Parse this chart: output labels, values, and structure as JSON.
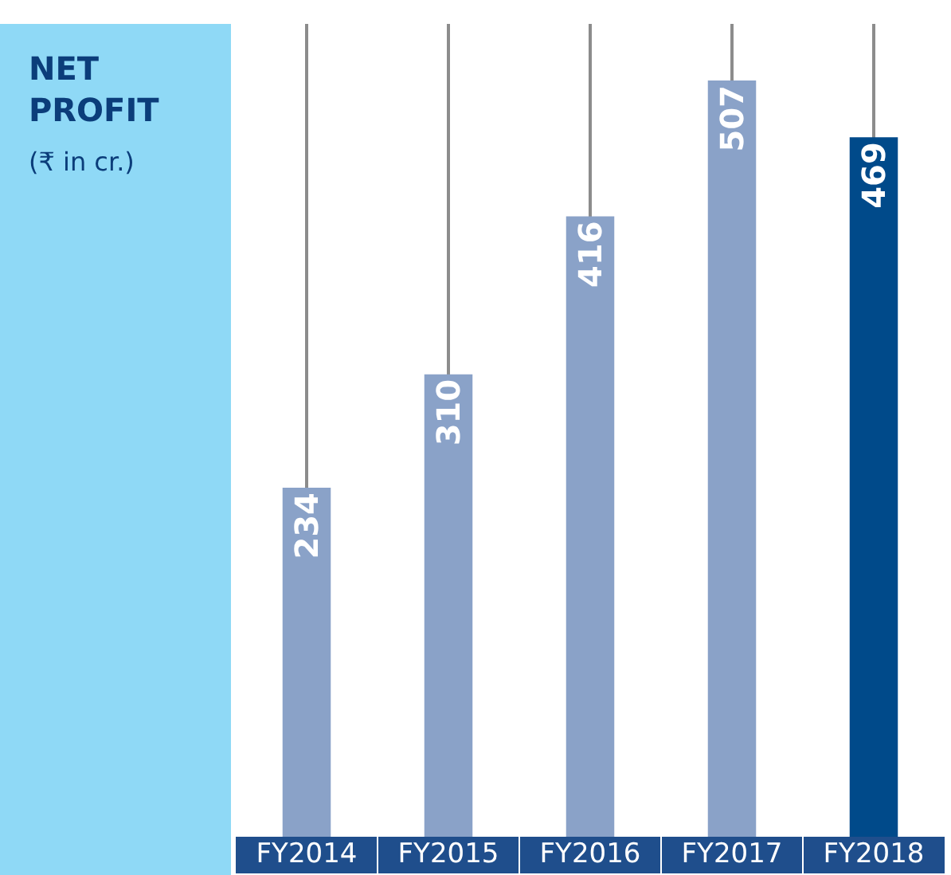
{
  "chart_data": {
    "type": "bar",
    "title": "NET PROFIT",
    "subtitle": "(₹ in cr.)",
    "categories": [
      "FY2014",
      "FY2015",
      "FY2016",
      "FY2017",
      "FY2018"
    ],
    "values": [
      234,
      310,
      416,
      507,
      469
    ],
    "colors": [
      "#8aa2c8",
      "#8aa2c8",
      "#8aa2c8",
      "#8aa2c8",
      "#004a8a"
    ],
    "ylim": [
      0,
      545
    ],
    "data_labels": true,
    "grid": "x"
  }
}
